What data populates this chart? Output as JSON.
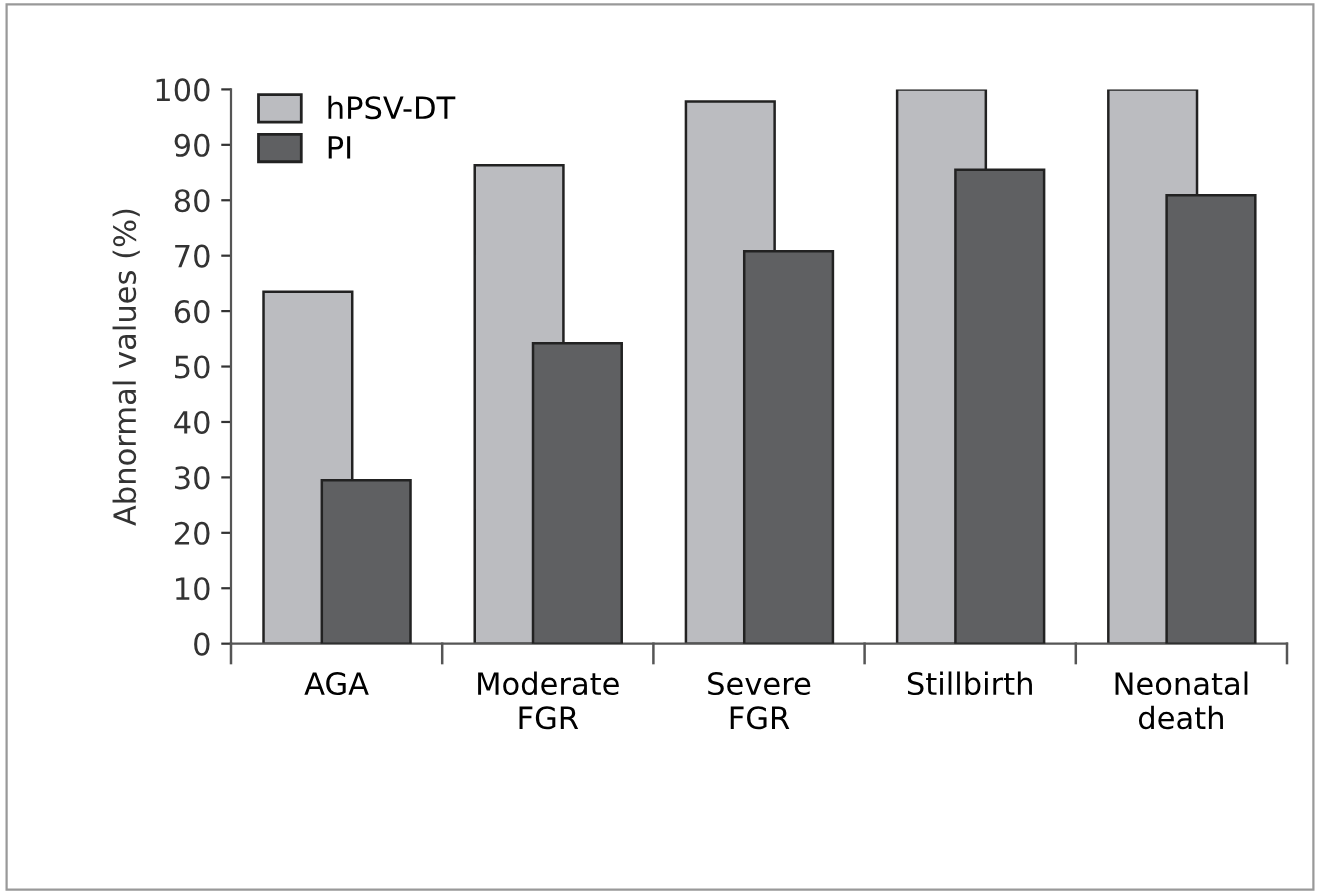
{
  "chart_data": {
    "type": "bar",
    "ylabel": "Abnormal values (%)",
    "categories": [
      "AGA",
      "Moderate\nFGR",
      "Severe\nFGR",
      "Stillbirth",
      "Neonatal\ndeath"
    ],
    "series": [
      {
        "name": "hPSV-DT",
        "color": "#bbbcc0",
        "values": [
          63.5,
          86.3,
          97.8,
          100,
          100
        ]
      },
      {
        "name": "PI",
        "color": "#5f6062",
        "values": [
          29.5,
          54.2,
          70.8,
          85.5,
          80.9
        ]
      }
    ],
    "ylim": [
      0,
      100
    ],
    "yticks": [
      0,
      10,
      20,
      30,
      40,
      50,
      60,
      70,
      80,
      90,
      100
    ],
    "grid": false,
    "legend": "top left"
  }
}
